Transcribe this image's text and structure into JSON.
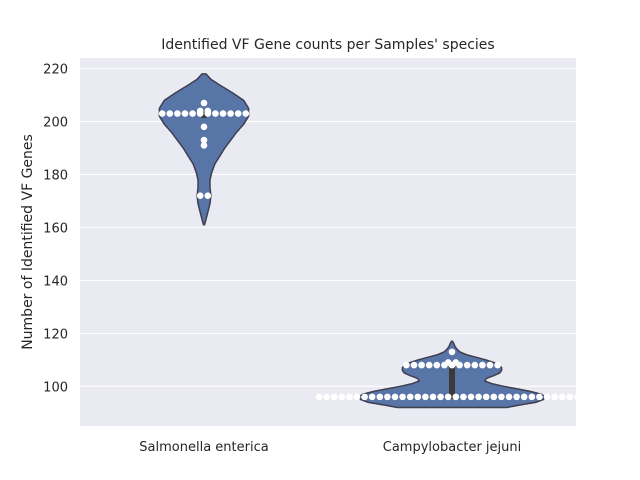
{
  "chart_data": {
    "type": "violin",
    "title": "Identified VF Gene counts per Samples' species",
    "xlabel": "",
    "ylabel": "Number of Identified VF Genes",
    "ylim": [
      85,
      224
    ],
    "yticks": [
      100,
      120,
      140,
      160,
      180,
      200,
      220
    ],
    "categories": [
      "Salmonella enterica",
      "Campylobacter jejuni"
    ],
    "grid": true,
    "colors": {
      "background": "#EAEAF2",
      "grid": "#FFFFFF",
      "violin_fill": "#5875A8",
      "violin_edge": "#3F3F4F",
      "points": "#FFFFFF",
      "box": "#3A3A3A"
    },
    "series": [
      {
        "category": "Salmonella enterica",
        "points": [
          207,
          204,
          204,
          203,
          203,
          203,
          203,
          203,
          203,
          203,
          203,
          203,
          203,
          203,
          203,
          198,
          193,
          191,
          172,
          172
        ],
        "violin_profile": [
          [
            161,
            0.5
          ],
          [
            163,
            2
          ],
          [
            166,
            4
          ],
          [
            169,
            6
          ],
          [
            172,
            7
          ],
          [
            175,
            6
          ],
          [
            178,
            6
          ],
          [
            181,
            8
          ],
          [
            184,
            11
          ],
          [
            187,
            16
          ],
          [
            190,
            21
          ],
          [
            193,
            27
          ],
          [
            196,
            33
          ],
          [
            199,
            40
          ],
          [
            202,
            45
          ],
          [
            205,
            45
          ],
          [
            208,
            40
          ],
          [
            211,
            28
          ],
          [
            214,
            15
          ],
          [
            216,
            7
          ],
          [
            218,
            2
          ]
        ]
      },
      {
        "category": "Campylobacter jejuni",
        "points": [
          113,
          109,
          109,
          108,
          108,
          108,
          108,
          108,
          108,
          108,
          108,
          108,
          108,
          108,
          108,
          108,
          96,
          96,
          96,
          96,
          96,
          96,
          96,
          96,
          96,
          96,
          96,
          96,
          96,
          96,
          96,
          96,
          96,
          96,
          96,
          96,
          96,
          96,
          96,
          96,
          96,
          96,
          96,
          96,
          96,
          96,
          96,
          96,
          96,
          96,
          96,
          96
        ],
        "violin_profile": [
          [
            92,
            55
          ],
          [
            93,
            70
          ],
          [
            94,
            85
          ],
          [
            95,
            92
          ],
          [
            96,
            94
          ],
          [
            97,
            90
          ],
          [
            98,
            80
          ],
          [
            99,
            66
          ],
          [
            100,
            52
          ],
          [
            101,
            40
          ],
          [
            102,
            33
          ],
          [
            103,
            35
          ],
          [
            104,
            42
          ],
          [
            105,
            48
          ],
          [
            106,
            50
          ],
          [
            107,
            50
          ],
          [
            108,
            48
          ],
          [
            109,
            42
          ],
          [
            110,
            34
          ],
          [
            111,
            24
          ],
          [
            112,
            14
          ],
          [
            113,
            8
          ],
          [
            114,
            5
          ],
          [
            115,
            3
          ],
          [
            116,
            2
          ],
          [
            117,
            0.5
          ]
        ]
      }
    ]
  }
}
